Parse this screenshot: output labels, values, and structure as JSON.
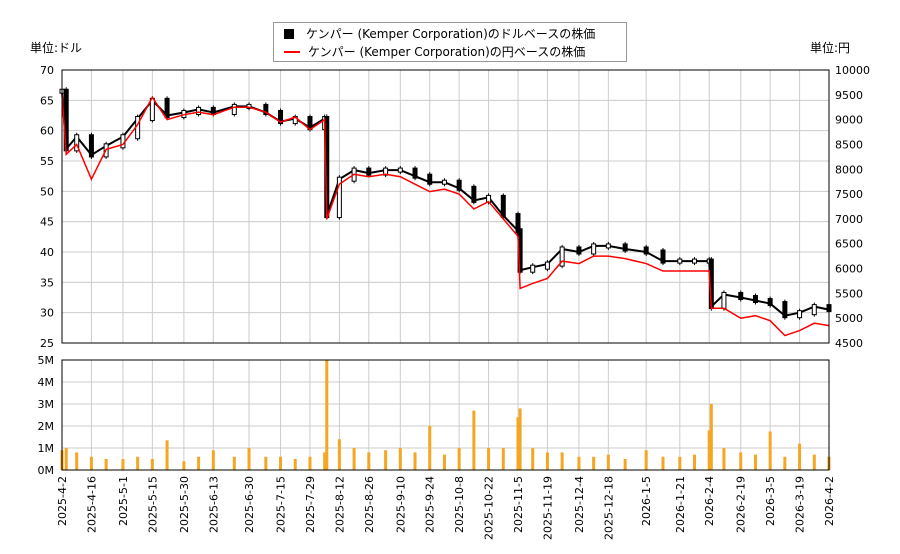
{
  "chart_data": {
    "type": "line",
    "legend": {
      "placement": "top-center",
      "items": [
        {
          "label": "ケンパー (Kemper Corporation)のドルベースの株価",
          "color": "#000000",
          "marker": "square"
        },
        {
          "label": "ケンパー (Kemper Corporation)の円ベースの株価",
          "color": "#ff0000",
          "marker": "line"
        }
      ]
    },
    "left_unit": "単位:ドル",
    "right_unit": "単位:円",
    "left_ylim": [
      25,
      70
    ],
    "left_yticks": [
      "25",
      "30",
      "35",
      "40",
      "45",
      "50",
      "55",
      "60",
      "65",
      "70"
    ],
    "right_ylim": [
      4500,
      10000
    ],
    "right_yticks": [
      "4500",
      "5000",
      "5500",
      "6000",
      "6500",
      "7000",
      "7500",
      "8000",
      "8500",
      "9000",
      "9500",
      "10000"
    ],
    "volume_ylim": [
      0,
      5
    ],
    "volume_yticks": [
      "0M",
      "1M",
      "2M",
      "3M",
      "4M",
      "5M"
    ],
    "grid": true,
    "xticks": [
      "2025-4-2",
      "2025-4-16",
      "2025-5-1",
      "2025-5-15",
      "2025-5-30",
      "2025-6-13",
      "2025-6-30",
      "2025-7-15",
      "2025-7-29",
      "2025-8-12",
      "2025-8-26",
      "2025-9-10",
      "2025-9-24",
      "2025-10-8",
      "2025-10-22",
      "2025-11-5",
      "2025-11-19",
      "2025-12-4",
      "2025-12-18",
      "2026-1-5",
      "2026-1-21",
      "2026-2-4",
      "2026-2-19",
      "2026-3-5",
      "2026-3-19",
      "2026-4-2"
    ],
    "x": [
      "2025-04-02",
      "2025-04-04",
      "2025-04-09",
      "2025-04-16",
      "2025-04-23",
      "2025-05-01",
      "2025-05-08",
      "2025-05-15",
      "2025-05-22",
      "2025-05-30",
      "2025-06-06",
      "2025-06-13",
      "2025-06-23",
      "2025-06-30",
      "2025-07-08",
      "2025-07-15",
      "2025-07-22",
      "2025-07-29",
      "2025-08-05",
      "2025-08-06",
      "2025-08-12",
      "2025-08-19",
      "2025-08-26",
      "2025-09-03",
      "2025-09-10",
      "2025-09-17",
      "2025-09-24",
      "2025-10-01",
      "2025-10-08",
      "2025-10-15",
      "2025-10-22",
      "2025-10-29",
      "2025-11-05",
      "2025-11-06",
      "2025-11-12",
      "2025-11-19",
      "2025-11-26",
      "2025-12-04",
      "2025-12-11",
      "2025-12-18",
      "2025-12-26",
      "2026-01-05",
      "2026-01-13",
      "2026-01-21",
      "2026-01-28",
      "2026-02-04",
      "2026-02-05",
      "2026-02-11",
      "2026-02-19",
      "2026-02-26",
      "2026-03-05",
      "2026-03-12",
      "2026-03-19",
      "2026-03-26",
      "2026-04-02"
    ],
    "series": [
      {
        "name": "ケンパー (Kemper Corporation)のドルベースの株価",
        "axis": "left",
        "values": [
          66.5,
          57,
          59,
          56,
          57.5,
          59,
          62,
          65,
          62.5,
          63,
          63.5,
          63,
          64,
          64,
          63,
          61.5,
          62,
          60.5,
          62,
          46,
          52,
          53.5,
          53,
          53.5,
          53.5,
          52.5,
          51.5,
          51.5,
          50.5,
          48.5,
          49,
          46,
          43.5,
          37,
          37.5,
          38,
          40.5,
          40,
          41,
          41,
          40.5,
          40,
          38.5,
          38.5,
          38.5,
          38.5,
          31,
          33,
          32.5,
          32,
          31.5,
          29.5,
          30,
          31,
          30.5
        ]
      },
      {
        "name": "ケンパー (Kemper Corporation)の円ベースの株価",
        "axis": "right",
        "values": [
          9500,
          8300,
          8500,
          7800,
          8400,
          8500,
          8900,
          9450,
          9000,
          9100,
          9150,
          9100,
          9250,
          9250,
          9150,
          8950,
          9050,
          8800,
          9000,
          7000,
          7700,
          7900,
          7850,
          7900,
          7850,
          7700,
          7550,
          7600,
          7500,
          7200,
          7350,
          7000,
          6650,
          5600,
          5700,
          5800,
          6150,
          6100,
          6250,
          6250,
          6200,
          6100,
          5950,
          5950,
          5950,
          5950,
          5200,
          5200,
          5000,
          5050,
          4950,
          4650,
          4750,
          4900,
          4850
        ]
      },
      {
        "unit": "M",
        "values": [
          0.9,
          1.0,
          0.8,
          0.6,
          0.5,
          0.5,
          0.6,
          0.5,
          1.35,
          0.4,
          0.6,
          0.9,
          0.6,
          1.0,
          0.6,
          0.6,
          0.5,
          0.6,
          0.8,
          5.0,
          1.4,
          1.0,
          0.8,
          0.9,
          1.0,
          0.8,
          2.0,
          0.7,
          1.0,
          2.7,
          1.0,
          1.0,
          2.4,
          2.8,
          1.0,
          0.8,
          0.8,
          0.6,
          0.6,
          0.7,
          0.5,
          0.9,
          0.6,
          0.6,
          0.7,
          1.8,
          3.0,
          1.0,
          0.8,
          0.7,
          1.75,
          0.6,
          1.2,
          0.7,
          0.6
        ]
      }
    ],
    "colors": {
      "usd": "#000000",
      "jpy": "#ff0000",
      "volume": "#f5a623",
      "grid": "#cccccc"
    }
  }
}
